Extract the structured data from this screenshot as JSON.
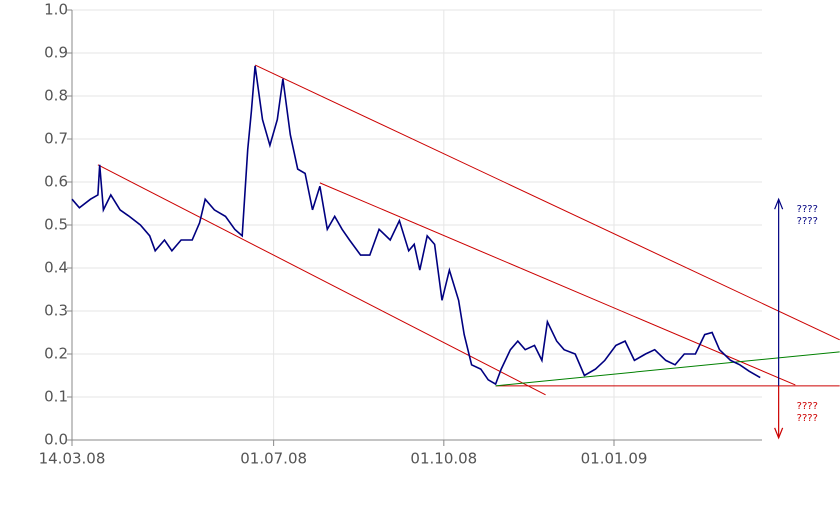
{
  "chart_data": {
    "type": "line",
    "x": [
      "2008-03-14",
      "2008-03-18",
      "2008-03-24",
      "2008-03-28",
      "2008-03-29",
      "2008-03-31",
      "2008-04-04",
      "2008-04-09",
      "2008-04-14",
      "2008-04-20",
      "2008-04-25",
      "2008-04-28",
      "2008-05-03",
      "2008-05-07",
      "2008-05-12",
      "2008-05-18",
      "2008-05-22",
      "2008-05-25",
      "2008-05-30",
      "2008-06-05",
      "2008-06-10",
      "2008-06-14",
      "2008-06-17",
      "2008-06-19",
      "2008-06-21",
      "2008-06-25",
      "2008-06-29",
      "2008-07-03",
      "2008-07-06",
      "2008-07-10",
      "2008-07-14",
      "2008-07-18",
      "2008-07-22",
      "2008-07-26",
      "2008-07-30",
      "2008-08-03",
      "2008-08-07",
      "2008-08-11",
      "2008-08-17",
      "2008-08-22",
      "2008-08-27",
      "2008-09-02",
      "2008-09-07",
      "2008-09-12",
      "2008-09-15",
      "2008-09-18",
      "2008-09-22",
      "2008-09-26",
      "2008-09-30",
      "2008-10-04",
      "2008-10-09",
      "2008-10-12",
      "2008-10-16",
      "2008-10-21",
      "2008-10-25",
      "2008-10-29",
      "2008-11-01",
      "2008-11-06",
      "2008-11-10",
      "2008-11-14",
      "2008-11-19",
      "2008-11-23",
      "2008-11-26",
      "2008-12-01",
      "2008-12-05",
      "2008-12-11",
      "2008-12-16",
      "2008-12-22",
      "2008-12-27",
      "2009-01-02",
      "2009-01-07",
      "2009-01-12",
      "2009-01-18",
      "2009-01-23",
      "2009-01-29",
      "2009-02-03",
      "2009-02-08",
      "2009-02-14",
      "2009-02-19",
      "2009-02-23",
      "2009-02-27",
      "2009-03-05",
      "2009-03-10",
      "2009-03-15",
      "2009-03-21"
    ],
    "series": [
      {
        "color": "#000080",
        "values": [
          0.56,
          0.54,
          0.56,
          0.57,
          0.64,
          0.535,
          0.57,
          0.535,
          0.52,
          0.5,
          0.475,
          0.44,
          0.465,
          0.44,
          0.465,
          0.465,
          0.505,
          0.56,
          0.535,
          0.52,
          0.49,
          0.475,
          0.675,
          0.765,
          0.87,
          0.745,
          0.685,
          0.745,
          0.84,
          0.71,
          0.63,
          0.62,
          0.535,
          0.59,
          0.49,
          0.52,
          0.49,
          0.465,
          0.43,
          0.43,
          0.49,
          0.465,
          0.51,
          0.44,
          0.455,
          0.395,
          0.475,
          0.455,
          0.325,
          0.395,
          0.325,
          0.245,
          0.175,
          0.165,
          0.14,
          0.13,
          0.165,
          0.21,
          0.23,
          0.21,
          0.22,
          0.185,
          0.275,
          0.23,
          0.21,
          0.2,
          0.15,
          0.165,
          0.185,
          0.22,
          0.23,
          0.185,
          0.2,
          0.21,
          0.185,
          0.175,
          0.2,
          0.2,
          0.245,
          0.25,
          0.21,
          0.185,
          0.175,
          0.16,
          0.145
        ]
      }
    ],
    "xlim": [
      "2008-03-14",
      "2009-03-22"
    ],
    "xticks": [
      {
        "value": "2008-03-14",
        "label": "14.03.08"
      },
      {
        "value": "2008-07-01",
        "label": "01.07.08"
      },
      {
        "value": "2008-10-01",
        "label": "01.10.08"
      },
      {
        "value": "2009-01-01",
        "label": "01.01.09"
      }
    ],
    "ylim": [
      0,
      1
    ],
    "yticks": [
      {
        "value": 0,
        "label": "0.0"
      },
      0.1,
      0.2,
      0.3,
      0.4,
      0.5,
      0.6,
      0.7,
      0.8,
      0.9,
      {
        "value": 1,
        "label": "1.0"
      }
    ],
    "grid": true,
    "trendlines": [
      {
        "color": "#cc0000",
        "x": [
          "2008-06-21",
          "2009-05-03"
        ],
        "y": [
          0.872,
          0.233
        ]
      },
      {
        "color": "#cc0000",
        "x": [
          "2008-07-26",
          "2009-04-09"
        ],
        "y": [
          0.598,
          0.128
        ]
      },
      {
        "color": "#cc0000",
        "x": [
          "2008-03-28",
          "2008-11-25"
        ],
        "y": [
          0.64,
          0.105
        ]
      },
      {
        "color": "#cc0000",
        "x": [
          "2008-10-29",
          "2009-05-03"
        ],
        "y": [
          0.126,
          0.126
        ]
      },
      {
        "color": "#008000",
        "x": [
          "2008-10-29",
          "2009-05-03"
        ],
        "y": [
          0.126,
          0.205
        ]
      }
    ],
    "arrows": [
      {
        "color": "#000080",
        "x": "2009-03-31",
        "from": 0.126,
        "to": 0.56,
        "text": [
          "????",
          "????"
        ]
      },
      {
        "color": "#cc0000",
        "x": "2009-03-31",
        "from": 0.126,
        "to": 0.005,
        "text": [
          "????",
          "????"
        ]
      }
    ]
  }
}
